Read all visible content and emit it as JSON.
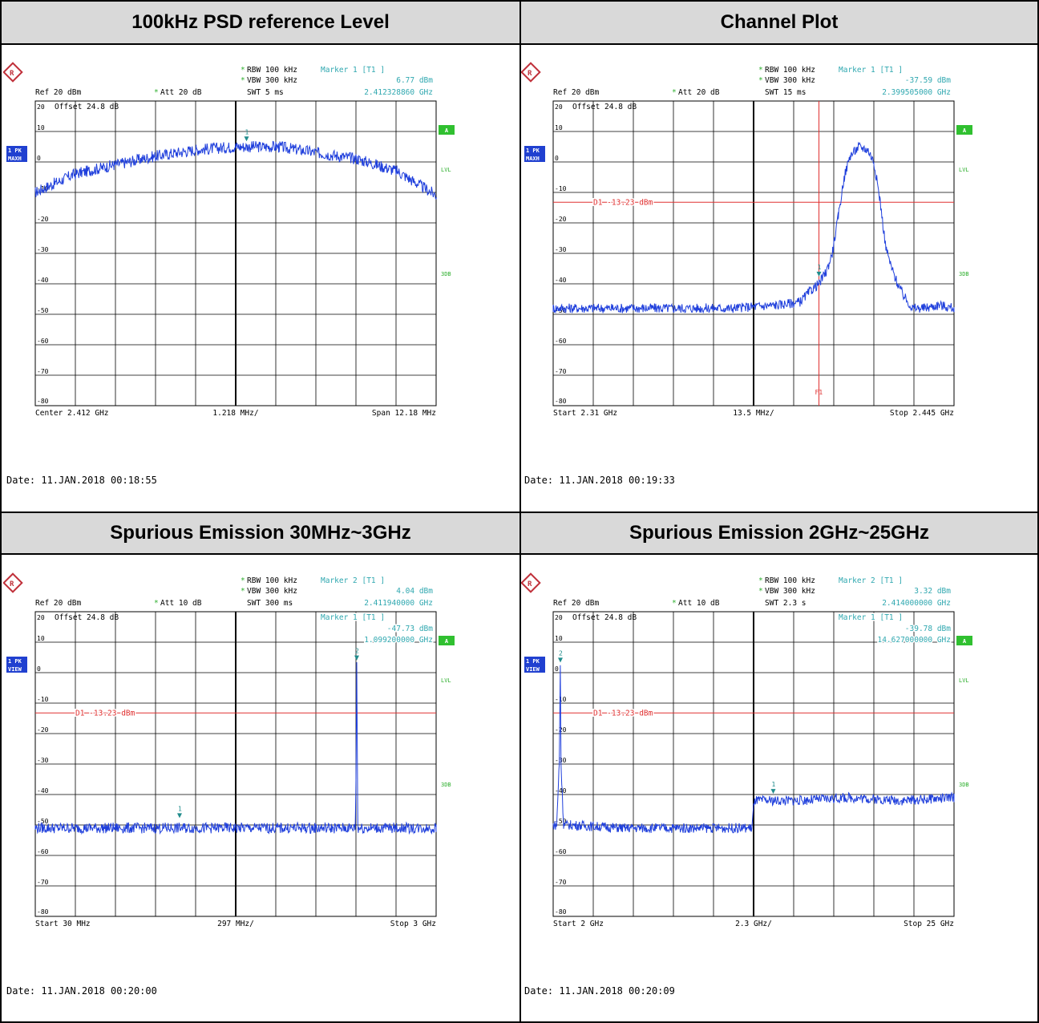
{
  "colors": {
    "trace": "#1f3fdc",
    "grid": "#000000",
    "header_bg": "#d9d9d9",
    "readout": "#30a8b0",
    "display_line": "#e03030",
    "marker": "#208c8c",
    "badge_blue": "#2040d0",
    "badge_green": "#30c030",
    "green_text": "#30b030"
  },
  "icons": {
    "logo": "rohde-schwarz-logo"
  },
  "panels": [
    {
      "title": "100kHz PSD reference Level",
      "rbw": "RBW 100 kHz",
      "vbw": "VBW 300 kHz",
      "ref": "Ref  20 dBm",
      "att": "Att  20 dB",
      "swt": "SWT 5 ms",
      "marker_title": "Marker 1 [T1 ]",
      "marker_level": "6.77 dBm",
      "marker_freq": "2.412328860 GHz",
      "offset": "Offset  24.8 dB",
      "badge1": "1 PK",
      "badge2": "MAXH",
      "side_a": "A",
      "side_lvl": "LVL",
      "side_3db": "3DB",
      "footer_left": "Center 2.412 GHz",
      "footer_mid": "1.218 MHz/",
      "footer_right": "Span 12.18 MHz",
      "date": "Date: 11.JAN.2018  00:18:55",
      "display_line_label": "",
      "inner_marker_title": "",
      "inner_marker_level": "",
      "inner_marker_freq": "",
      "chart_data": {
        "type": "line",
        "xlim": [
          2.40591,
          2.41809
        ],
        "ylim": [
          -80,
          20
        ],
        "y_ticks": [
          20,
          10,
          0,
          -10,
          -20,
          -30,
          -40,
          -50,
          -60,
          -70,
          -80
        ],
        "x_unit": "GHz",
        "y_unit": "dBm",
        "series": [
          {
            "x": [
              2.40591,
              2.4071,
              2.4083,
              2.4096,
              2.4108,
              2.412,
              2.4125,
              2.4133,
              2.4145,
              2.4157,
              2.4169,
              2.4181
            ],
            "y": [
              -10,
              -4,
              -1,
              2,
              4,
              5,
              5,
              5,
              3,
              1,
              -3,
              -11
            ]
          }
        ],
        "markers": [
          {
            "label": "1",
            "x": 2.41232886,
            "y": 6.77
          }
        ],
        "display_line": null,
        "f1_line": null,
        "noise": 1.2
      }
    },
    {
      "title": "Channel Plot",
      "rbw": "RBW 100 kHz",
      "vbw": "VBW 300 kHz",
      "ref": "Ref  20 dBm",
      "att": "Att  20 dB",
      "swt": "SWT 15 ms",
      "marker_title": "Marker 1 [T1 ]",
      "marker_level": "-37.59 dBm",
      "marker_freq": "2.399505000 GHz",
      "offset": "Offset  24.8 dB",
      "badge1": "1 PK",
      "badge2": "MAXH",
      "side_a": "A",
      "side_lvl": "LVL",
      "side_3db": "3DB",
      "footer_left": "Start 2.31 GHz",
      "footer_mid": "13.5 MHz/",
      "footer_right": "Stop 2.445 GHz",
      "date": "Date: 11.JAN.2018  00:19:33",
      "display_line_label": "D1 -13.23 dBm",
      "f1_label": "F1",
      "inner_marker_title": "",
      "inner_marker_level": "",
      "inner_marker_freq": "",
      "chart_data": {
        "type": "line",
        "xlim": [
          2.31,
          2.445
        ],
        "ylim": [
          -80,
          20
        ],
        "y_ticks": [
          20,
          10,
          0,
          -10,
          -20,
          -30,
          -40,
          -50,
          -60,
          -70,
          -80
        ],
        "x_unit": "GHz",
        "y_unit": "dBm",
        "series": [
          {
            "x": [
              2.31,
              2.33,
              2.35,
              2.37,
              2.385,
              2.393,
              2.397,
              2.3995,
              2.402,
              2.404,
              2.406,
              2.408,
              2.41,
              2.413,
              2.416,
              2.418,
              2.42,
              2.422,
              2.424,
              2.426,
              2.428,
              2.431,
              2.435,
              2.44,
              2.445
            ],
            "y": [
              -48,
              -48,
              -48,
              -48,
              -47,
              -46,
              -42,
              -40,
              -36,
              -30,
              -18,
              -5,
              2,
              5,
              4,
              0,
              -12,
              -28,
              -35,
              -40,
              -44,
              -48,
              -48,
              -47,
              -48
            ]
          }
        ],
        "markers": [
          {
            "label": "1",
            "x": 2.399505,
            "y": -37.59
          }
        ],
        "display_line": -13.23,
        "f1_line": 2.399505,
        "noise": 1.0
      }
    },
    {
      "title": "Spurious Emission 30MHz~3GHz",
      "rbw": "RBW 100 kHz",
      "vbw": "VBW 300 kHz",
      "ref": "Ref  20 dBm",
      "att": "Att  10 dB",
      "swt": "SWT 300 ms",
      "marker_title": "Marker 2 [T1 ]",
      "marker_level": "4.04 dBm",
      "marker_freq": "2.411940000 GHz",
      "offset": "Offset  24.8 dB",
      "badge1": "1 PK",
      "badge2": "VIEW",
      "side_a": "A",
      "side_lvl": "LVL",
      "side_3db": "3DB",
      "footer_left": "Start 30 MHz",
      "footer_mid": "297 MHz/",
      "footer_right": "Stop 3 GHz",
      "date": "Date: 11.JAN.2018  00:20:00",
      "display_line_label": "D1 -13.23 dBm",
      "inner_marker_title": "Marker 1 [T1 ]",
      "inner_marker_level": "-47.73 dBm",
      "inner_marker_freq": "1.099200000 GHz",
      "chart_data": {
        "type": "line",
        "xlim": [
          0.03,
          3.0
        ],
        "ylim": [
          -80,
          20
        ],
        "y_ticks": [
          20,
          10,
          0,
          -10,
          -20,
          -30,
          -40,
          -50,
          -60,
          -70,
          -80
        ],
        "x_unit": "GHz",
        "y_unit": "dBm",
        "series": [
          {
            "x": [
              0.03,
              0.5,
              1.0,
              1.5,
              2.0,
              2.4,
              2.405,
              2.41,
              2.412,
              2.414,
              2.42,
              2.5,
              3.0
            ],
            "y": [
              -51,
              -51,
              -51,
              -51,
              -51,
              -51,
              -40,
              -10,
              4,
              -10,
              -51,
              -51,
              -51
            ]
          }
        ],
        "markers": [
          {
            "label": "1",
            "x": 1.0992,
            "y": -47.73
          },
          {
            "label": "2",
            "x": 2.41194,
            "y": 4.04
          }
        ],
        "display_line": -13.23,
        "f1_line": null,
        "noise": 1.1
      }
    },
    {
      "title": "Spurious Emission 2GHz~25GHz",
      "rbw": "RBW 100 kHz",
      "vbw": "VBW 300 kHz",
      "ref": "Ref  20 dBm",
      "att": "Att  10 dB",
      "swt": "SWT 2.3 s",
      "marker_title": "Marker 2 [T1 ]",
      "marker_level": "3.32 dBm",
      "marker_freq": "2.414000000 GHz",
      "offset": "Offset  24.8 dB",
      "badge1": "1 PK",
      "badge2": "VIEW",
      "side_a": "A",
      "side_lvl": "LVL",
      "side_3db": "3DB",
      "footer_left": "Start 2 GHz",
      "footer_mid": "2.3 GHz/",
      "footer_right": "Stop 25 GHz",
      "date": "Date: 11.JAN.2018  00:20:09",
      "display_line_label": "D1 -13.23 dBm",
      "inner_marker_title": "Marker 1 [T1 ]",
      "inner_marker_level": "-39.78 dBm",
      "inner_marker_freq": "14.627000000 GHz",
      "chart_data": {
        "type": "line",
        "xlim": [
          2,
          25
        ],
        "ylim": [
          -80,
          20
        ],
        "y_ticks": [
          20,
          10,
          0,
          -10,
          -20,
          -30,
          -40,
          -50,
          -60,
          -70,
          -80
        ],
        "x_unit": "GHz",
        "y_unit": "dBm",
        "series": [
          {
            "x": [
              2,
              2.2,
              2.35,
              2.41,
              2.45,
              2.6,
              3,
              6,
              9,
              13.4,
              13.5,
              13.6,
              16,
              19,
              22,
              25
            ],
            "y": [
              -50,
              -50,
              -30,
              3,
              -30,
              -50,
              -50,
              -51,
              -51,
              -51,
              -44,
              -42,
              -42,
              -41,
              -42,
              -41
            ]
          }
        ],
        "markers": [
          {
            "label": "1",
            "x": 14.627,
            "y": -39.78
          },
          {
            "label": "2",
            "x": 2.414,
            "y": 3.32
          }
        ],
        "display_line": -13.23,
        "f1_line": null,
        "noise": 1.0
      }
    }
  ]
}
